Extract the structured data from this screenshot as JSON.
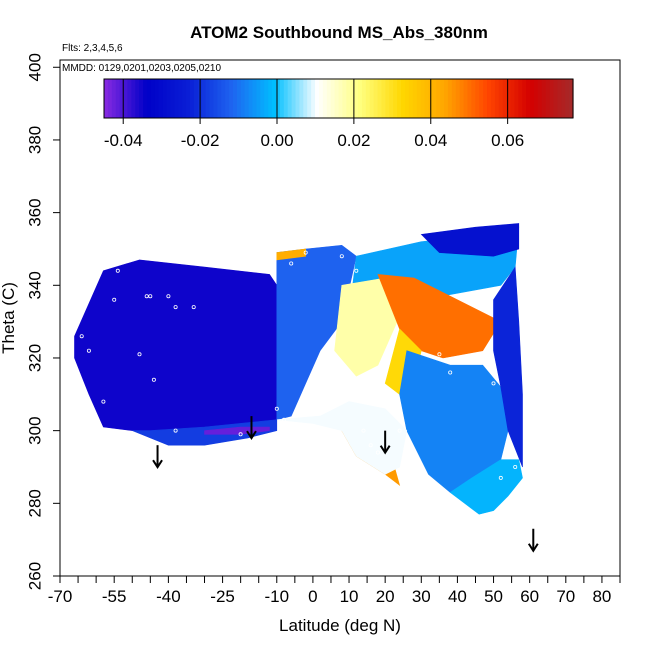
{
  "chart_data": {
    "type": "heatmap",
    "title": "ATOM2 Southbound MS_Abs_380nm",
    "annotations": [
      "Flts: 2,3,4,5,6",
      "MMDD: 0129,0201,0203,0205,0210"
    ],
    "xlabel": "Latitude (deg N)",
    "ylabel": "Theta (C)",
    "xlim": [
      -70,
      85
    ],
    "ylim": [
      260,
      402
    ],
    "xticks": [
      -70,
      -55,
      -40,
      -25,
      -10,
      0,
      10,
      20,
      30,
      40,
      50,
      60,
      70,
      80
    ],
    "xtick_labels": [
      "-70",
      "-55",
      "-40",
      "-25",
      "-10",
      "0",
      "10",
      "20",
      "30",
      "40",
      "50",
      "60",
      "70",
      "80"
    ],
    "xminor_ticks": [
      -65,
      -60,
      -50,
      -45,
      -35,
      -30,
      -20,
      -15,
      -5,
      5,
      15,
      25,
      35,
      45,
      55,
      65,
      75,
      85
    ],
    "yticks": [
      260,
      280,
      300,
      320,
      340,
      360,
      380,
      400
    ],
    "ytick_labels": [
      "260",
      "280",
      "300",
      "320",
      "340",
      "360",
      "380",
      "400"
    ],
    "colorbar": {
      "range": [
        -0.045,
        0.077
      ],
      "ticks": [
        -0.04,
        -0.02,
        0.0,
        0.02,
        0.04,
        0.06
      ],
      "tick_labels": [
        "-0.04",
        "-0.02",
        "0.00",
        "0.02",
        "0.04",
        "0.06"
      ],
      "colors": [
        "#8a2be2",
        "#0000c8",
        "#0a1fd6",
        "#1e64f0",
        "#00bfff",
        "#ffffff",
        "#ffff80",
        "#ffd700",
        "#ffa500",
        "#ff4500",
        "#d40000",
        "#a52a2a"
      ]
    },
    "regions": [
      {
        "value": -0.035,
        "points": [
          [
            -66,
            326
          ],
          [
            -58,
            344
          ],
          [
            -48,
            347
          ],
          [
            -30,
            345
          ],
          [
            -12,
            343
          ],
          [
            -10,
            340
          ],
          [
            -10,
            303
          ],
          [
            -18,
            302
          ],
          [
            -35,
            299
          ],
          [
            -50,
            300
          ],
          [
            -58,
            301
          ],
          [
            -62,
            310
          ],
          [
            -66,
            320
          ]
        ]
      },
      {
        "value": -0.012,
        "points": [
          [
            -10,
            349
          ],
          [
            -2,
            350
          ],
          [
            8,
            351
          ],
          [
            12,
            348
          ],
          [
            8,
            330
          ],
          [
            2,
            322
          ],
          [
            -6,
            304
          ],
          [
            -10,
            303
          ]
        ]
      },
      {
        "value": -0.004,
        "points": [
          [
            12,
            348
          ],
          [
            30,
            352
          ],
          [
            50,
            354
          ],
          [
            57,
            356
          ],
          [
            56,
            345
          ],
          [
            52,
            340
          ],
          [
            30,
            336
          ],
          [
            18,
            334
          ],
          [
            10,
            332
          ]
        ]
      },
      {
        "value": -0.028,
        "points": [
          [
            30,
            354
          ],
          [
            45,
            356
          ],
          [
            57,
            357
          ],
          [
            57,
            350
          ],
          [
            50,
            348
          ],
          [
            35,
            349
          ]
        ]
      },
      {
        "value": 0.018,
        "points": [
          [
            8,
            340
          ],
          [
            20,
            342
          ],
          [
            26,
            336
          ],
          [
            18,
            318
          ],
          [
            12,
            315
          ],
          [
            6,
            322
          ]
        ]
      },
      {
        "value": 0.05,
        "points": [
          [
            18,
            343
          ],
          [
            28,
            342
          ],
          [
            52,
            330
          ],
          [
            47,
            322
          ],
          [
            36,
            320
          ],
          [
            30,
            322
          ],
          [
            24,
            328
          ]
        ]
      },
      {
        "value": 0.032,
        "points": [
          [
            24,
            328
          ],
          [
            30,
            322
          ],
          [
            28,
            314
          ],
          [
            24,
            310
          ],
          [
            20,
            313
          ]
        ]
      },
      {
        "value": -0.008,
        "points": [
          [
            26,
            322
          ],
          [
            38,
            318
          ],
          [
            47,
            318
          ],
          [
            52,
            312
          ],
          [
            54,
            300
          ],
          [
            52,
            292
          ],
          [
            44,
            287
          ],
          [
            38,
            283
          ],
          [
            32,
            288
          ],
          [
            26,
            300
          ],
          [
            24,
            310
          ]
        ]
      },
      {
        "value": -0.002,
        "points": [
          [
            38,
            283
          ],
          [
            42,
            280
          ],
          [
            46,
            277
          ],
          [
            50,
            278
          ],
          [
            54,
            282
          ],
          [
            58,
            287
          ],
          [
            57,
            292
          ],
          [
            52,
            292
          ],
          [
            44,
            287
          ]
        ]
      },
      {
        "value": -0.022,
        "points": [
          [
            50,
            336
          ],
          [
            56,
            345
          ],
          [
            57,
            330
          ],
          [
            58,
            310
          ],
          [
            58,
            290
          ],
          [
            54,
            300
          ],
          [
            52,
            312
          ],
          [
            50,
            322
          ]
        ]
      },
      {
        "value": 0.045,
        "points": [
          [
            8,
            300
          ],
          [
            16,
            298
          ],
          [
            22,
            292
          ],
          [
            24,
            285
          ],
          [
            20,
            288
          ],
          [
            12,
            293
          ]
        ]
      },
      {
        "value": 0.01,
        "points": [
          [
            -10,
            303
          ],
          [
            0,
            302
          ],
          [
            8,
            300
          ],
          [
            12,
            293
          ],
          [
            20,
            288
          ],
          [
            24,
            290
          ],
          [
            26,
            300
          ],
          [
            20,
            306
          ],
          [
            10,
            308
          ],
          [
            2,
            304
          ]
        ]
      },
      {
        "value": -0.018,
        "points": [
          [
            -50,
            300
          ],
          [
            -40,
            296
          ],
          [
            -30,
            296
          ],
          [
            -18,
            298
          ],
          [
            -10,
            300
          ],
          [
            -10,
            303
          ],
          [
            -30,
            301
          ],
          [
            -45,
            300
          ]
        ]
      },
      {
        "value": -0.042,
        "points": [
          [
            -30,
            299
          ],
          [
            -20,
            299
          ],
          [
            -12,
            300
          ],
          [
            -12,
            301
          ],
          [
            -20,
            301
          ],
          [
            -30,
            300
          ]
        ]
      },
      {
        "value": 0.042,
        "points": [
          [
            -10,
            349
          ],
          [
            -2,
            350
          ],
          [
            -2,
            348
          ],
          [
            -10,
            347
          ]
        ]
      }
    ],
    "sample_points": [
      [
        -64,
        326
      ],
      [
        -62,
        322
      ],
      [
        -58,
        308
      ],
      [
        -55,
        336
      ],
      [
        -54,
        344
      ],
      [
        -46,
        337
      ],
      [
        -45,
        337
      ],
      [
        -40,
        337
      ],
      [
        -38,
        334
      ],
      [
        -33,
        334
      ],
      [
        -48,
        321
      ],
      [
        -44,
        314
      ],
      [
        -38,
        300
      ],
      [
        -20,
        299
      ],
      [
        -10,
        306
      ],
      [
        -8,
        303
      ],
      [
        -6,
        346
      ],
      [
        -2,
        349
      ],
      [
        8,
        348
      ],
      [
        12,
        344
      ],
      [
        14,
        300
      ],
      [
        16,
        296
      ],
      [
        18,
        294
      ],
      [
        24,
        300
      ],
      [
        35,
        321
      ],
      [
        38,
        316
      ],
      [
        50,
        313
      ],
      [
        52,
        287
      ],
      [
        56,
        290
      ]
    ],
    "arrows_latitude": [
      -43,
      -17,
      20,
      61
    ],
    "arrows_theta_top": [
      296,
      304,
      300,
      273
    ],
    "grid": false,
    "legend": "colorbar top"
  }
}
